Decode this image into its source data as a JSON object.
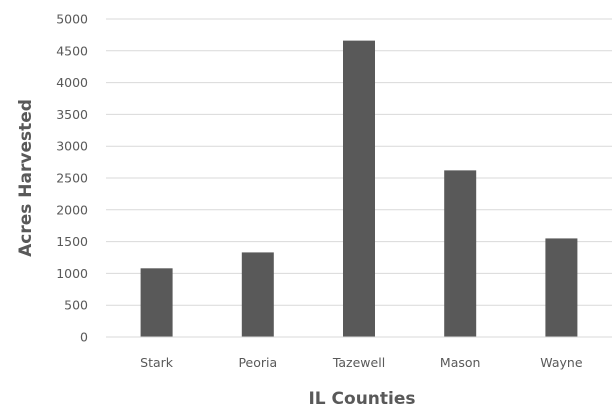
{
  "chart_data": {
    "type": "bar",
    "title": "",
    "xlabel": "IL Counties",
    "ylabel": "Acres Harvested",
    "categories": [
      "Stark",
      "Peoria",
      "Tazewell",
      "Mason",
      "Wayne"
    ],
    "values": [
      1080,
      1330,
      4660,
      2620,
      1550
    ],
    "ylim": [
      0,
      5000
    ],
    "yticks": [
      "0",
      "500",
      "1000",
      "1500",
      "2000",
      "2500",
      "3000",
      "3500",
      "4000",
      "4500",
      "5000"
    ],
    "grid": true,
    "legend": "none",
    "bar_color": "#595959",
    "grid_color": "#d9d9d9"
  }
}
